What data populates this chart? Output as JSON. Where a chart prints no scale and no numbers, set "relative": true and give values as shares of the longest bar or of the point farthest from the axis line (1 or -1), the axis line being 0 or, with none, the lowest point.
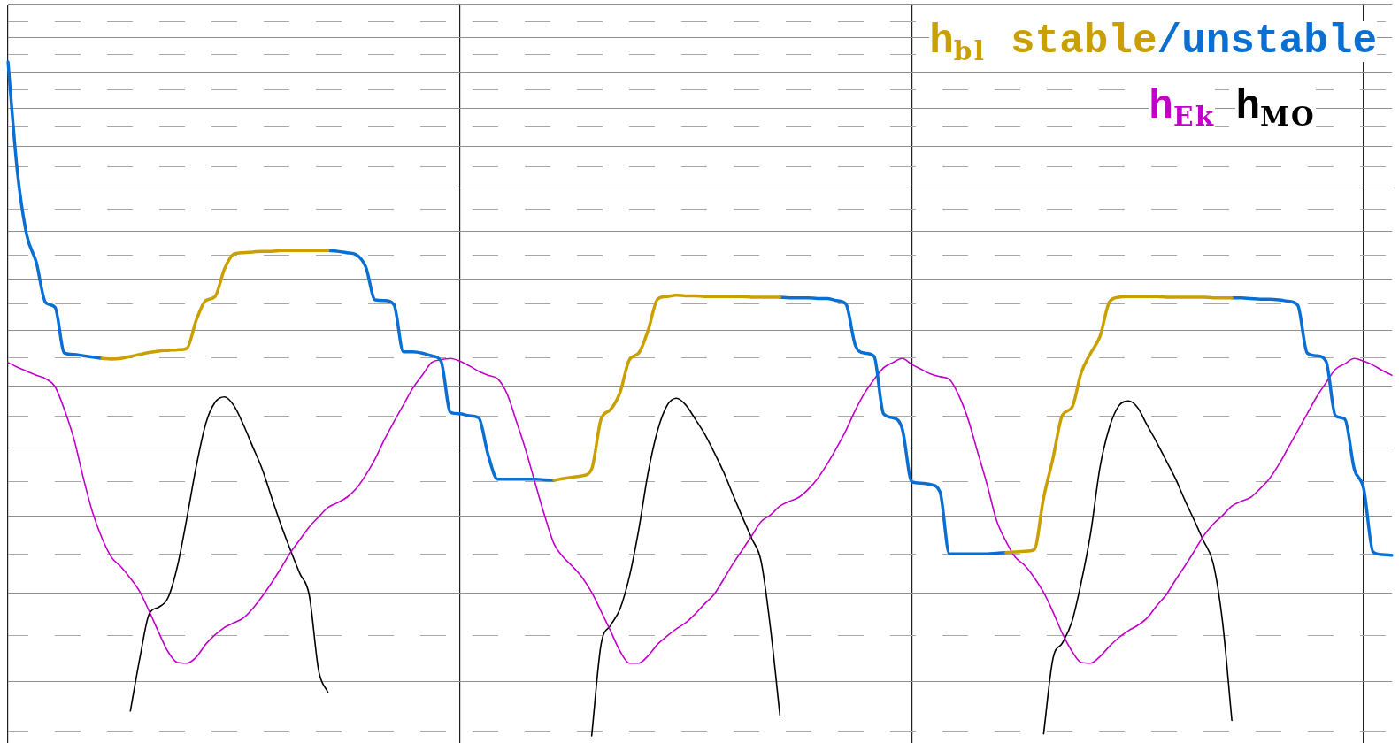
{
  "chart_data": {
    "type": "line",
    "relative": true,
    "grid": true,
    "legend": "top right",
    "categories": [
      null,
      null,
      null,
      null,
      null,
      null,
      null,
      null,
      null,
      null,
      null,
      null,
      null,
      null,
      null,
      null,
      null,
      null,
      null,
      null,
      null,
      null,
      null,
      null,
      null,
      null,
      null,
      null,
      null,
      null,
      null,
      null,
      null,
      null,
      null,
      null,
      null,
      null,
      null,
      null,
      null,
      null,
      null,
      null,
      null,
      null,
      null,
      null,
      null,
      null,
      null,
      null,
      null,
      null,
      null,
      null,
      null,
      null,
      null,
      null,
      null,
      null,
      null,
      null,
      null,
      null,
      null,
      null,
      null,
      null,
      null,
      null,
      null,
      null,
      null,
      null,
      null,
      null,
      null,
      null,
      null,
      null,
      null,
      null,
      null,
      null,
      null,
      null,
      null,
      null,
      null,
      null,
      null,
      null,
      null,
      null,
      null,
      null,
      null,
      null,
      null,
      null,
      null,
      null,
      null,
      null,
      null,
      null,
      null,
      null,
      null,
      null,
      null,
      null,
      null,
      null,
      null,
      null,
      null,
      null,
      null,
      null,
      null,
      null,
      null,
      null,
      null,
      null,
      null,
      null,
      null,
      null,
      null,
      null,
      null,
      null,
      null,
      null,
      null,
      null,
      null,
      null,
      null,
      null,
      null,
      null,
      null,
      null
    ],
    "series": [
      {
        "name": "h$_{bl}$ stable",
        "color": "#c9a000",
        "values": [
          null,
          null,
          null,
          null,
          null,
          null,
          null,
          null,
          null,
          null,
          0.56,
          0.559,
          0.56,
          0.563,
          0.566,
          0.569,
          0.571,
          0.572,
          0.573,
          0.575,
          0.617,
          0.646,
          0.652,
          0.693,
          0.715,
          0.717,
          0.718,
          0.719,
          0.719,
          0.72,
          0.72,
          0.72,
          0.72,
          0.72,
          0.72,
          null,
          null,
          null,
          null,
          null,
          null,
          null,
          null,
          null,
          null,
          null,
          null,
          null,
          null,
          null,
          null,
          null,
          null,
          null,
          null,
          null,
          null,
          null,
          0.379,
          0.382,
          0.384,
          0.386,
          0.396,
          0.47,
          0.484,
          0.509,
          0.558,
          0.568,
          0.602,
          0.648,
          0.652,
          0.654,
          0.653,
          0.653,
          0.652,
          0.652,
          0.652,
          0.652,
          0.652,
          0.651,
          0.651,
          0.651,
          0.651,
          null,
          null,
          null,
          null,
          null,
          null,
          null,
          null,
          null,
          null,
          null,
          null,
          null,
          null,
          null,
          null,
          null,
          null,
          null,
          null,
          null,
          null,
          null,
          0.272,
          0.273,
          0.274,
          0.276,
          0.353,
          0.412,
          0.476,
          0.487,
          0.539,
          0.568,
          0.593,
          0.644,
          0.651,
          0.652,
          0.652,
          0.652,
          0.652,
          0.651,
          0.651,
          0.651,
          0.651,
          0.651,
          0.65,
          0.65,
          0.65,
          null,
          null,
          null,
          null,
          null,
          null,
          null,
          null,
          null,
          null,
          null,
          null,
          null,
          null,
          null,
          null,
          null
        ]
      },
      {
        "name": "/unstable",
        "color": "#0a6fd2",
        "values": [
          1,
          0.837,
          0.743,
          0.703,
          0.643,
          0.636,
          0.568,
          0.566,
          0.564,
          0.562,
          0.56,
          null,
          null,
          null,
          null,
          null,
          null,
          null,
          null,
          null,
          null,
          null,
          null,
          null,
          null,
          null,
          null,
          null,
          null,
          null,
          null,
          null,
          null,
          null,
          0.72,
          0.719,
          0.717,
          0.714,
          0.696,
          0.647,
          0.646,
          0.64,
          0.57,
          0.57,
          0.568,
          0.564,
          0.556,
          0.48,
          0.478,
          0.475,
          0.472,
          0.417,
          0.381,
          0.381,
          0.381,
          0.381,
          0.381,
          0.38,
          0.379,
          null,
          null,
          null,
          null,
          null,
          null,
          null,
          null,
          null,
          null,
          null,
          null,
          null,
          null,
          null,
          null,
          null,
          null,
          null,
          null,
          null,
          null,
          null,
          0.651,
          0.65,
          0.65,
          0.65,
          0.649,
          0.649,
          0.646,
          0.641,
          0.58,
          0.568,
          0.563,
          0.478,
          0.472,
          0.455,
          0.377,
          0.375,
          0.373,
          0.362,
          0.27,
          0.27,
          0.27,
          0.27,
          0.27,
          0.271,
          0.272,
          null,
          null,
          null,
          null,
          null,
          null,
          null,
          null,
          null,
          null,
          null,
          null,
          null,
          null,
          null,
          null,
          null,
          null,
          null,
          null,
          null,
          null,
          null,
          0.65,
          0.65,
          0.649,
          0.648,
          0.648,
          0.647,
          0.645,
          0.639,
          0.568,
          0.564,
          0.556,
          0.475,
          0.47,
          0.396,
          0.367,
          0.273,
          0.269,
          0.268
        ]
      },
      {
        "name": "h$_{Ek}$",
        "color": "#c000c8",
        "values": [
          0.554,
          0.547,
          0.541,
          0.535,
          0.53,
          0.518,
          0.484,
          0.441,
          0.383,
          0.331,
          0.293,
          0.265,
          0.251,
          0.234,
          0.214,
          0.185,
          0.154,
          0.125,
          0.109,
          0.108,
          0.117,
          0.136,
          0.15,
          0.161,
          0.168,
          0.175,
          0.189,
          0.207,
          0.227,
          0.249,
          0.272,
          0.291,
          0.31,
          0.325,
          0.339,
          0.346,
          0.354,
          0.367,
          0.387,
          0.411,
          0.44,
          0.466,
          0.491,
          0.516,
          0.535,
          0.554,
          0.558,
          0.56,
          0.556,
          0.549,
          0.541,
          0.535,
          0.53,
          0.508,
          0.467,
          0.424,
          0.375,
          0.327,
          0.285,
          0.265,
          0.251,
          0.235,
          0.213,
          0.185,
          0.156,
          0.126,
          0.108,
          0.108,
          0.119,
          0.136,
          0.148,
          0.159,
          0.168,
          0.181,
          0.196,
          0.21,
          0.232,
          0.255,
          0.276,
          0.297,
          0.318,
          0.328,
          0.341,
          0.348,
          0.354,
          0.366,
          0.382,
          0.403,
          0.427,
          0.453,
          0.483,
          0.509,
          0.529,
          0.546,
          0.554,
          0.56,
          0.551,
          0.544,
          0.537,
          0.533,
          0.529,
          0.505,
          0.469,
          0.421,
          0.373,
          0.32,
          0.289,
          0.265,
          0.253,
          0.235,
          0.213,
          0.184,
          0.152,
          0.126,
          0.109,
          0.108,
          0.118,
          0.133,
          0.146,
          0.156,
          0.164,
          0.175,
          0.193,
          0.209,
          0.231,
          0.252,
          0.274,
          0.297,
          0.314,
          0.327,
          0.341,
          0.348,
          0.354,
          0.367,
          0.382,
          0.403,
          0.428,
          0.453,
          0.478,
          0.503,
          0.524,
          0.544,
          0.552,
          0.56,
          0.556,
          0.55,
          0.542,
          0.535
        ]
      },
      {
        "name": "h$_{MO}$",
        "color": "#000000",
        "values": [
          null,
          null,
          null,
          null,
          null,
          null,
          null,
          null,
          null,
          null,
          null,
          null,
          null,
          0.037,
          0.115,
          0.181,
          0.191,
          0.205,
          0.252,
          0.323,
          0.4,
          0.463,
          0.495,
          0.503,
          0.49,
          0.462,
          0.429,
          0.396,
          0.354,
          0.313,
          0.276,
          0.241,
          0.209,
          0.097,
          0.064,
          null,
          null,
          null,
          null,
          null,
          null,
          null,
          null,
          null,
          null,
          null,
          null,
          null,
          null,
          null,
          null,
          null,
          null,
          null,
          null,
          null,
          null,
          null,
          null,
          null,
          null,
          null,
          0,
          0.136,
          0.164,
          0.188,
          0.236,
          0.306,
          0.391,
          0.453,
          0.49,
          0.501,
          0.491,
          0.47,
          0.448,
          0.421,
          0.392,
          0.358,
          0.325,
          0.293,
          0.259,
          0.159,
          0.03,
          null,
          null,
          null,
          null,
          null,
          null,
          null,
          null,
          null,
          null,
          null,
          null,
          null,
          null,
          null,
          null,
          null,
          null,
          null,
          null,
          null,
          null,
          null,
          null,
          null,
          null,
          null,
          0.003,
          0.115,
          0.138,
          0.169,
          0.228,
          0.301,
          0.399,
          0.458,
          0.49,
          0.497,
          0.487,
          0.461,
          0.436,
          0.409,
          0.382,
          0.35,
          0.32,
          0.289,
          0.257,
          0.17,
          0.023,
          null,
          null,
          null,
          null,
          null,
          null,
          null,
          null,
          null,
          null,
          null,
          null,
          null,
          null,
          null,
          null,
          null
        ]
      }
    ]
  }
}
